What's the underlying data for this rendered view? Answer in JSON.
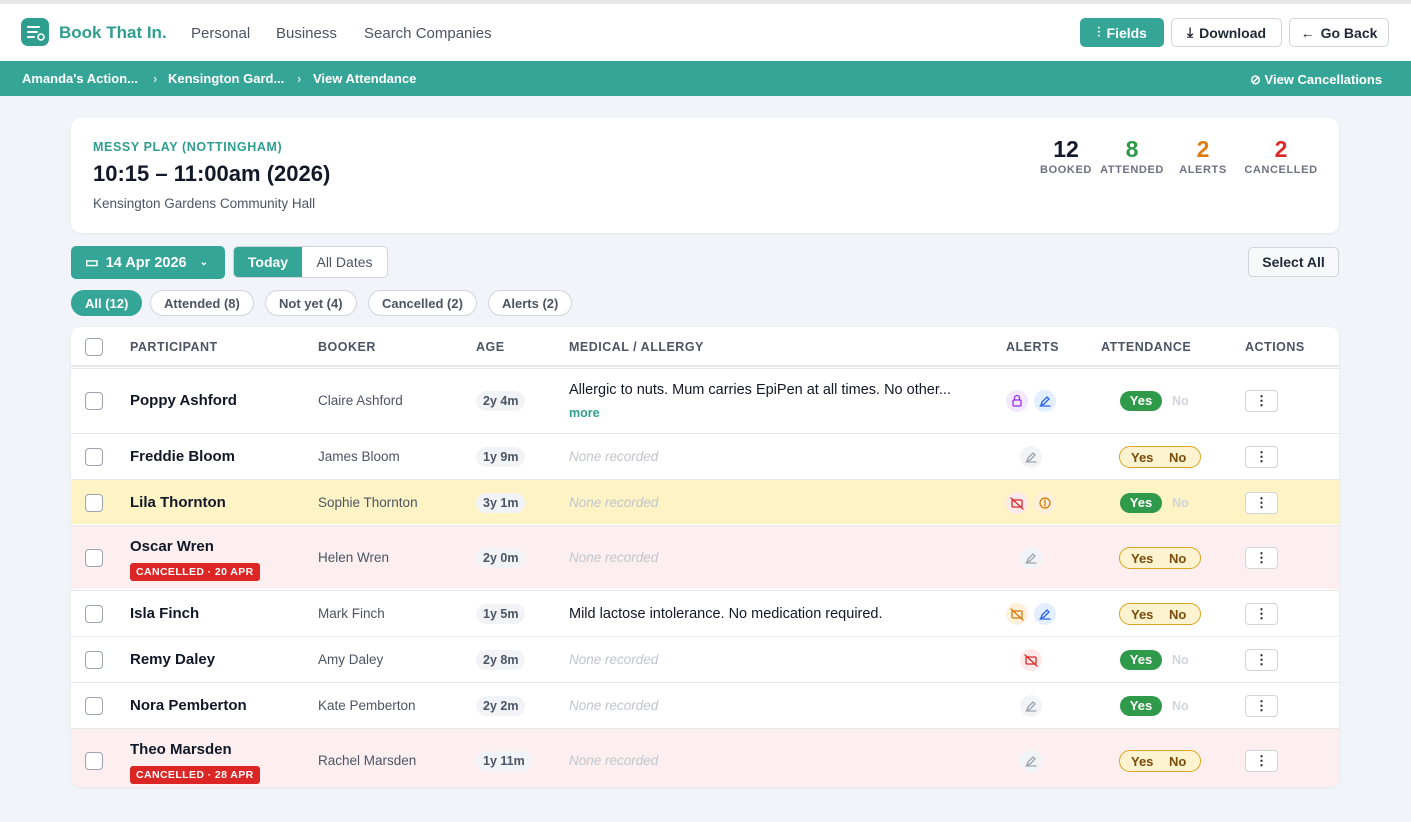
{
  "nav": {
    "brand": "Book That In.",
    "links": [
      "Personal",
      "Business",
      "Search Companies"
    ],
    "buttons": [
      "Fields",
      "Download",
      "Go Back"
    ]
  },
  "breadcrumb": {
    "items": [
      "Amanda's Action...",
      "Kensington Gard...",
      "View Attendance"
    ],
    "action": "View Cancellations"
  },
  "session": {
    "category": "MESSY PLAY (NOTTINGHAM)",
    "time": "10:15 – 11:00am (2026)",
    "venue": "Kensington Gardens Community Hall",
    "stats": [
      {
        "value": 12,
        "label": "BOOKED",
        "color": "#111827"
      },
      {
        "value": 8,
        "label": "ATTENDED",
        "color": "#2f9a4a"
      },
      {
        "value": 2,
        "label": "ALERTS",
        "color": "#e07b12"
      },
      {
        "value": 2,
        "label": "CANCELLED",
        "color": "#d92b2b"
      }
    ]
  },
  "filters": {
    "date": "14 Apr 2026",
    "range": [
      "Today",
      "All Dates"
    ],
    "select_all": "Select All",
    "chips": [
      "All (12)",
      "Attended (8)",
      "Not yet (4)",
      "Cancelled (2)",
      "Alerts (2)"
    ]
  },
  "table": {
    "columns": [
      "PARTICIPANT",
      "BOOKER",
      "AGE",
      "MEDICAL / ALLERGY",
      "ALERTS",
      "ATTENDANCE",
      "ACTIONS"
    ],
    "rows": [
      {
        "participant": "Poppy Ashford",
        "booker": "Claire Ashford",
        "age": "2y 4m",
        "medical": "Allergic to nuts. Mum carries EpiPen at all times. No other...",
        "more": "more",
        "alerts": [
          "lock",
          "edit"
        ],
        "yes": "Yes",
        "no": "No",
        "attended": true
      },
      {
        "participant": "Freddie Bloom",
        "booker": "James Bloom",
        "age": "1y 9m",
        "medical": "None recorded",
        "medical_missing": true,
        "alerts": [
          "edit-gray"
        ],
        "yes": "Yes",
        "no": "No",
        "attended": false
      },
      {
        "participant": "Lila Thornton",
        "booker": "Sophie Thornton",
        "age": "3y 1m",
        "medical": "None recorded",
        "medical_missing": true,
        "alerts": [
          "nophoto",
          "coin"
        ],
        "yes": "Yes",
        "no": "No",
        "attended": true,
        "highlight": "#fdf3c4"
      },
      {
        "participant": "Oscar Wren",
        "booker": "Helen Wren",
        "age": "2y 0m",
        "medical": "None recorded",
        "medical_missing": true,
        "cancelled": "CANCELLED · 20 APR",
        "alerts": [
          "edit-gray"
        ],
        "yes": "Yes",
        "no": "No",
        "attended": false,
        "highlight": "#fdeff0"
      },
      {
        "participant": "Isla Finch",
        "booker": "Mark Finch",
        "age": "1y 5m",
        "medical": "Mild lactose intolerance. No medication required.",
        "alerts": [
          "nophoto-orange",
          "edit"
        ],
        "yes": "Yes",
        "no": "No",
        "attended": false
      },
      {
        "participant": "Remy Daley",
        "booker": "Amy Daley",
        "age": "2y 8m",
        "medical": "None recorded",
        "medical_missing": true,
        "alerts": [
          "nophoto"
        ],
        "yes": "Yes",
        "no": "No",
        "attended": true
      },
      {
        "participant": "Nora Pemberton",
        "booker": "Kate Pemberton",
        "age": "2y 2m",
        "medical": "None recorded",
        "medical_missing": true,
        "alerts": [
          "edit-gray"
        ],
        "yes": "Yes",
        "no": "No",
        "attended": true
      },
      {
        "participant": "Theo Marsden",
        "booker": "Rachel Marsden",
        "age": "1y 11m",
        "medical": "None recorded",
        "medical_missing": true,
        "cancelled": "CANCELLED · 28 APR",
        "alerts": [
          "edit-gray"
        ],
        "yes": "Yes",
        "no": "No",
        "attended": false,
        "highlight": "#fdeff0"
      }
    ]
  }
}
